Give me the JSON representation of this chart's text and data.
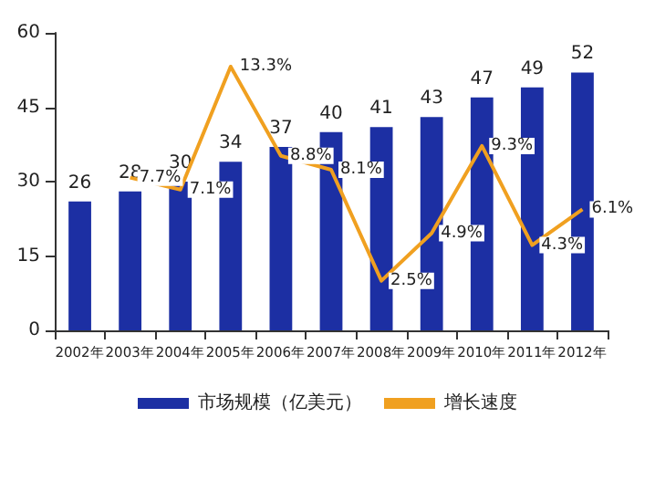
{
  "chart_data": {
    "type": "bar",
    "categories": [
      "2002年",
      "2003年",
      "2004年",
      "2005年",
      "2006年",
      "2007年",
      "2008年",
      "2009年",
      "2010年",
      "2011年",
      "2012年"
    ],
    "series": [
      {
        "name": "市场规模（亿美元）",
        "color": "#1c2fa3",
        "values": [
          26,
          28,
          30,
          34,
          37,
          40,
          41,
          43,
          47,
          49,
          52
        ],
        "data_labels": true
      },
      {
        "name": "增长速度",
        "type": "line",
        "axis": "y2",
        "color": "#f0a020",
        "values": [
          null,
          7.7,
          7.1,
          13.3,
          8.8,
          8.1,
          2.5,
          4.9,
          9.3,
          4.3,
          6.1
        ],
        "value_labels": [
          null,
          "7.7%",
          "7.1%",
          "13.3%",
          "8.8%",
          "8.1%",
          "2.5%",
          "4.9%",
          "9.3%",
          "4.3%",
          "6.1%"
        ]
      }
    ],
    "ylim": [
      0,
      60
    ],
    "yticks": [
      0,
      15,
      30,
      45,
      60
    ],
    "y2lim": [
      0,
      15
    ],
    "tick_labels": "xy",
    "grid": false,
    "legend": "bottom",
    "marker": "none",
    "line_style": "solid"
  }
}
